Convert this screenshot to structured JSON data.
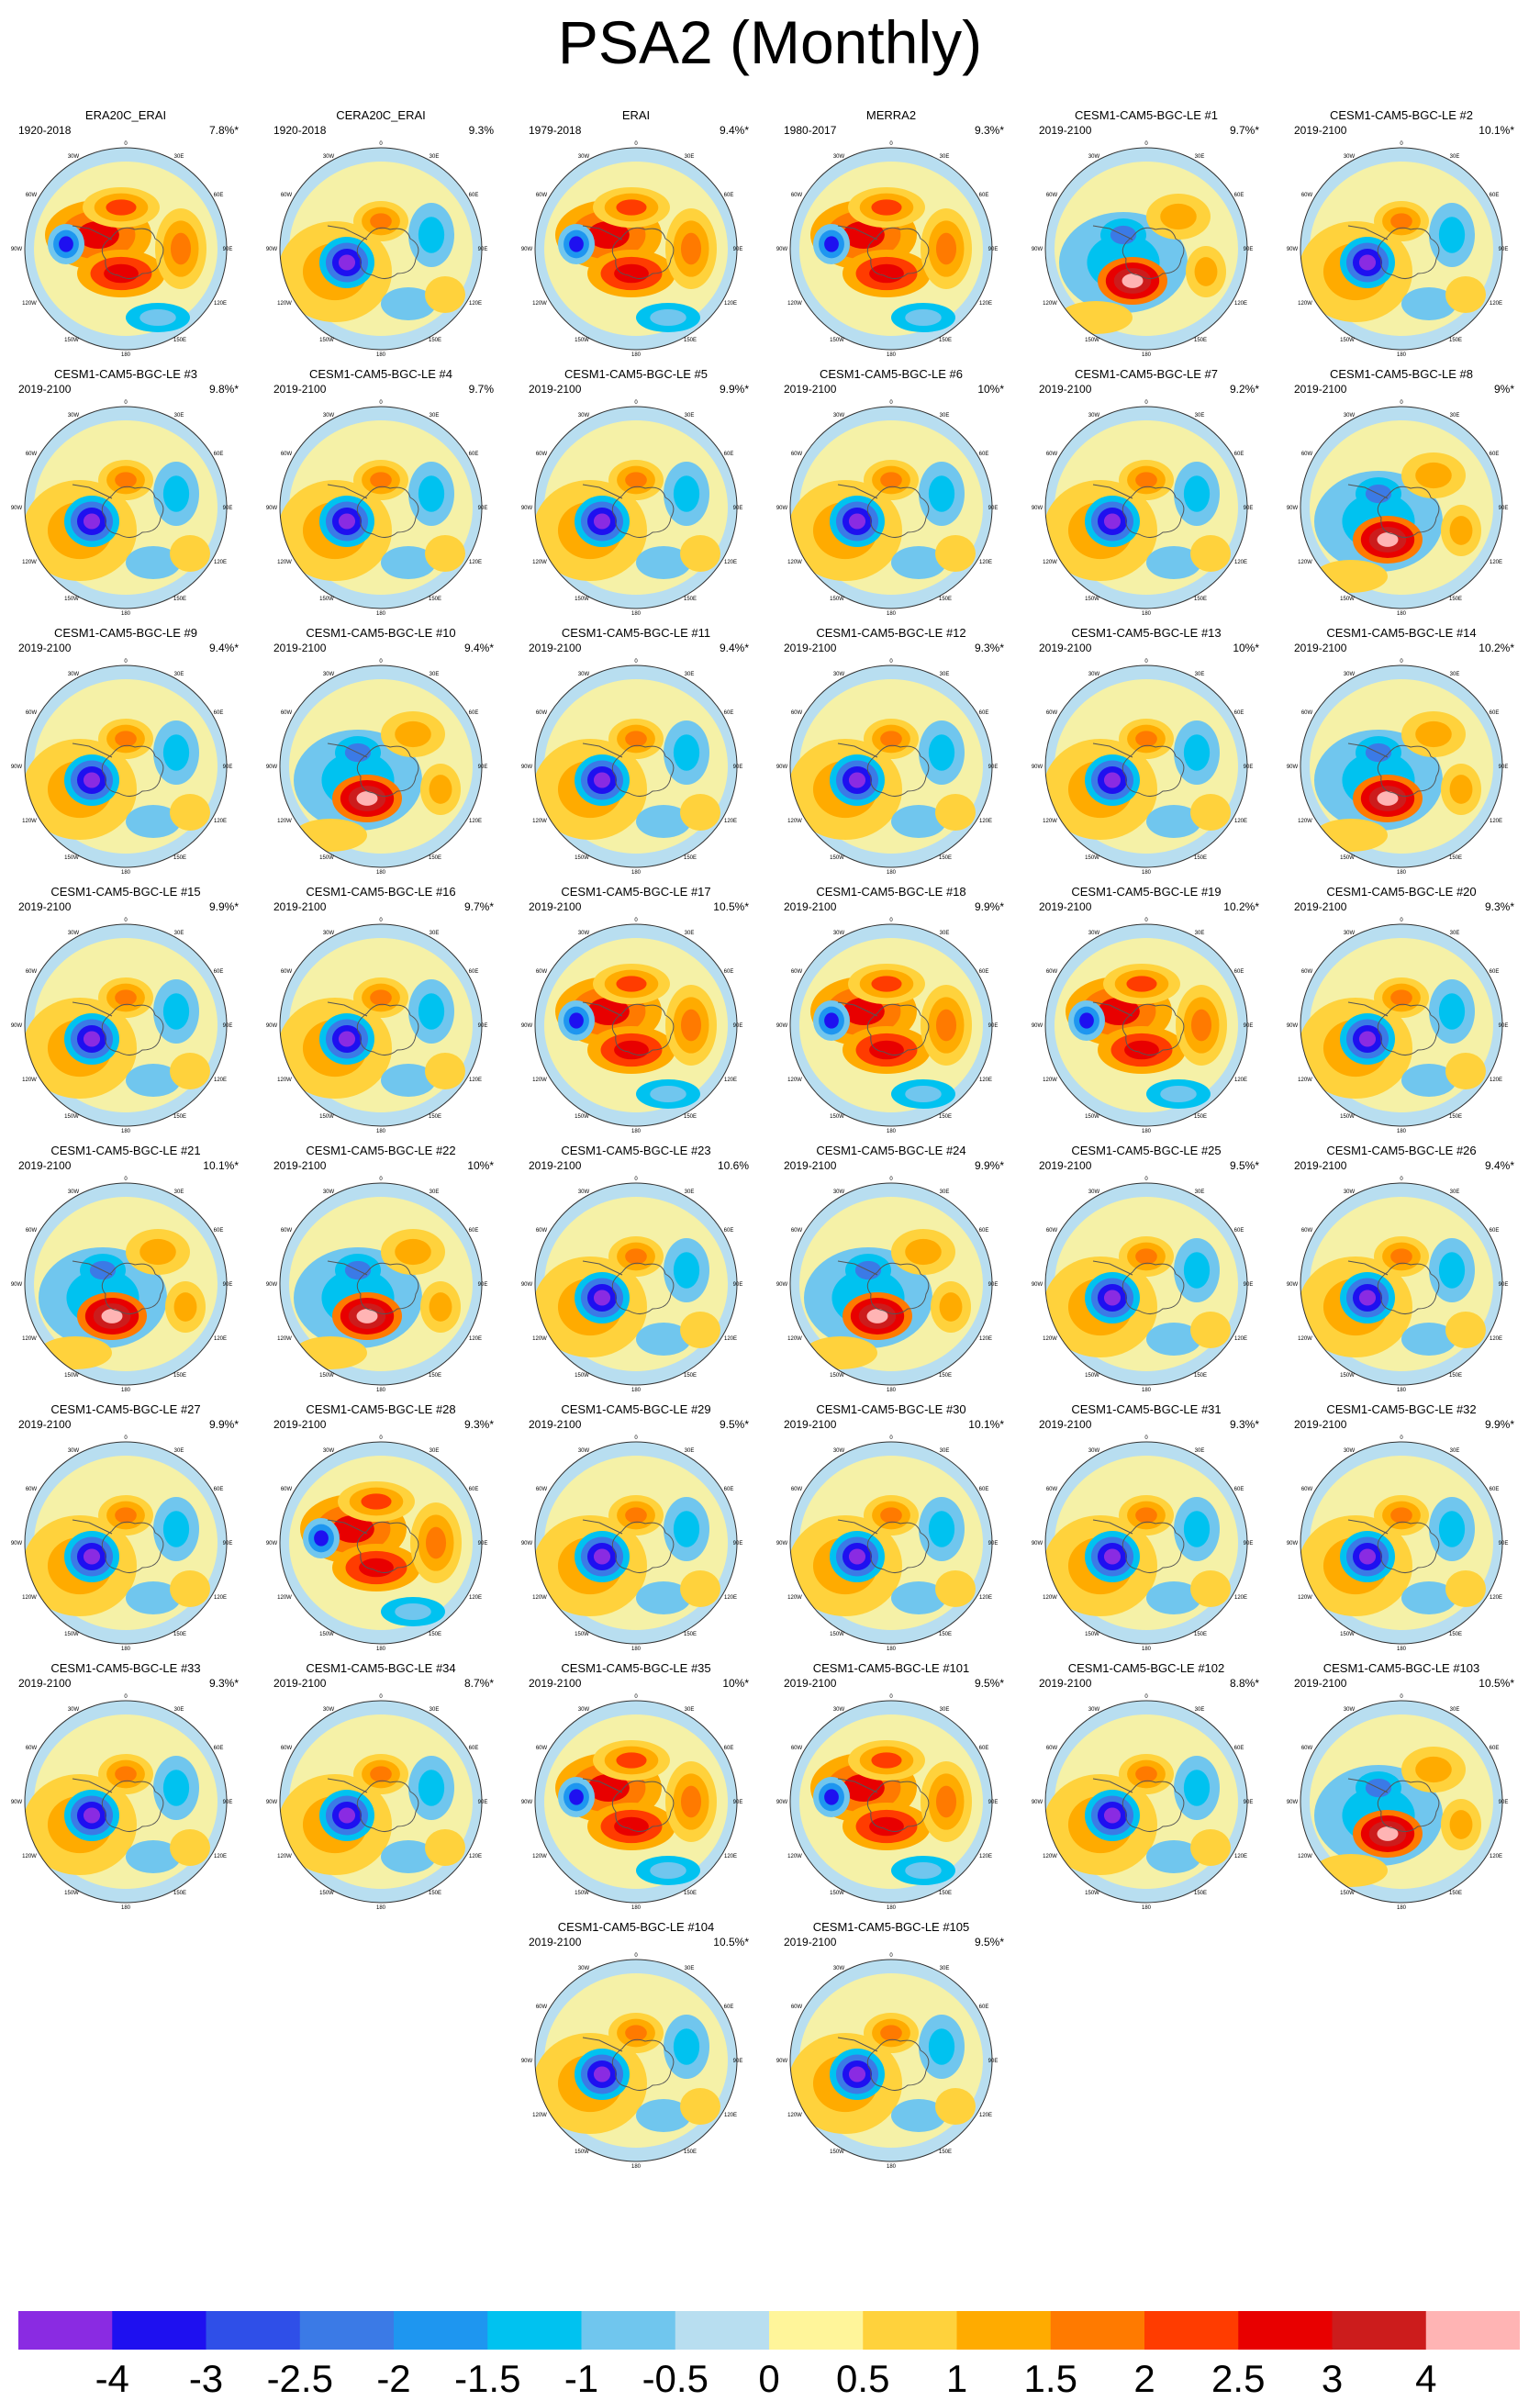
{
  "title": "PSA2 (Monthly)",
  "map_labels": {
    "top": "0",
    "t30w": "30W",
    "t30e": "30E",
    "l60w": "60W",
    "r60e": "60E",
    "l90w": "90W",
    "r90e": "90E",
    "l120w": "120W",
    "r120e": "120E",
    "b150w": "150W",
    "b150e": "150E",
    "bottom": "180"
  },
  "panels": [
    {
      "name": "ERA20C_ERAI",
      "period": "1920-2018",
      "pct": "7.8%*",
      "pattern": "A"
    },
    {
      "name": "CERA20C_ERAI",
      "period": "1920-2018",
      "pct": "9.3%",
      "pattern": "B"
    },
    {
      "name": "ERAI",
      "period": "1979-2018",
      "pct": "9.4%*",
      "pattern": "A"
    },
    {
      "name": "MERRA2",
      "period": "1980-2017",
      "pct": "9.3%*",
      "pattern": "A"
    },
    {
      "name": "CESM1-CAM5-BGC-LE #1",
      "period": "2019-2100",
      "pct": "9.7%*",
      "pattern": "C"
    },
    {
      "name": "CESM1-CAM5-BGC-LE #2",
      "period": "2019-2100",
      "pct": "10.1%*",
      "pattern": "B"
    },
    {
      "name": "CESM1-CAM5-BGC-LE #3",
      "period": "2019-2100",
      "pct": "9.8%*",
      "pattern": "B"
    },
    {
      "name": "CESM1-CAM5-BGC-LE #4",
      "period": "2019-2100",
      "pct": "9.7%",
      "pattern": "B"
    },
    {
      "name": "CESM1-CAM5-BGC-LE #5",
      "period": "2019-2100",
      "pct": "9.9%*",
      "pattern": "B"
    },
    {
      "name": "CESM1-CAM5-BGC-LE #6",
      "period": "2019-2100",
      "pct": "10%*",
      "pattern": "B"
    },
    {
      "name": "CESM1-CAM5-BGC-LE #7",
      "period": "2019-2100",
      "pct": "9.2%*",
      "pattern": "B"
    },
    {
      "name": "CESM1-CAM5-BGC-LE #8",
      "period": "2019-2100",
      "pct": "9%*",
      "pattern": "C"
    },
    {
      "name": "CESM1-CAM5-BGC-LE #9",
      "period": "2019-2100",
      "pct": "9.4%*",
      "pattern": "B"
    },
    {
      "name": "CESM1-CAM5-BGC-LE #10",
      "period": "2019-2100",
      "pct": "9.4%*",
      "pattern": "C"
    },
    {
      "name": "CESM1-CAM5-BGC-LE #11",
      "period": "2019-2100",
      "pct": "9.4%*",
      "pattern": "B"
    },
    {
      "name": "CESM1-CAM5-BGC-LE #12",
      "period": "2019-2100",
      "pct": "9.3%*",
      "pattern": "B"
    },
    {
      "name": "CESM1-CAM5-BGC-LE #13",
      "period": "2019-2100",
      "pct": "10%*",
      "pattern": "B"
    },
    {
      "name": "CESM1-CAM5-BGC-LE #14",
      "period": "2019-2100",
      "pct": "10.2%*",
      "pattern": "C"
    },
    {
      "name": "CESM1-CAM5-BGC-LE #15",
      "period": "2019-2100",
      "pct": "9.9%*",
      "pattern": "B"
    },
    {
      "name": "CESM1-CAM5-BGC-LE #16",
      "period": "2019-2100",
      "pct": "9.7%*",
      "pattern": "B"
    },
    {
      "name": "CESM1-CAM5-BGC-LE #17",
      "period": "2019-2100",
      "pct": "10.5%*",
      "pattern": "A"
    },
    {
      "name": "CESM1-CAM5-BGC-LE #18",
      "period": "2019-2100",
      "pct": "9.9%*",
      "pattern": "A"
    },
    {
      "name": "CESM1-CAM5-BGC-LE #19",
      "period": "2019-2100",
      "pct": "10.2%*",
      "pattern": "A"
    },
    {
      "name": "CESM1-CAM5-BGC-LE #20",
      "period": "2019-2100",
      "pct": "9.3%*",
      "pattern": "B"
    },
    {
      "name": "CESM1-CAM5-BGC-LE #21",
      "period": "2019-2100",
      "pct": "10.1%*",
      "pattern": "C"
    },
    {
      "name": "CESM1-CAM5-BGC-LE #22",
      "period": "2019-2100",
      "pct": "10%*",
      "pattern": "C"
    },
    {
      "name": "CESM1-CAM5-BGC-LE #23",
      "period": "2019-2100",
      "pct": "10.6%",
      "pattern": "B"
    },
    {
      "name": "CESM1-CAM5-BGC-LE #24",
      "period": "2019-2100",
      "pct": "9.9%*",
      "pattern": "C"
    },
    {
      "name": "CESM1-CAM5-BGC-LE #25",
      "period": "2019-2100",
      "pct": "9.5%*",
      "pattern": "B"
    },
    {
      "name": "CESM1-CAM5-BGC-LE #26",
      "period": "2019-2100",
      "pct": "9.4%*",
      "pattern": "B"
    },
    {
      "name": "CESM1-CAM5-BGC-LE #27",
      "period": "2019-2100",
      "pct": "9.9%*",
      "pattern": "B"
    },
    {
      "name": "CESM1-CAM5-BGC-LE #28",
      "period": "2019-2100",
      "pct": "9.3%*",
      "pattern": "A"
    },
    {
      "name": "CESM1-CAM5-BGC-LE #29",
      "period": "2019-2100",
      "pct": "9.5%*",
      "pattern": "B"
    },
    {
      "name": "CESM1-CAM5-BGC-LE #30",
      "period": "2019-2100",
      "pct": "10.1%*",
      "pattern": "B"
    },
    {
      "name": "CESM1-CAM5-BGC-LE #31",
      "period": "2019-2100",
      "pct": "9.3%*",
      "pattern": "B"
    },
    {
      "name": "CESM1-CAM5-BGC-LE #32",
      "period": "2019-2100",
      "pct": "9.9%*",
      "pattern": "B"
    },
    {
      "name": "CESM1-CAM5-BGC-LE #33",
      "period": "2019-2100",
      "pct": "9.3%*",
      "pattern": "B"
    },
    {
      "name": "CESM1-CAM5-BGC-LE #34",
      "period": "2019-2100",
      "pct": "8.7%*",
      "pattern": "B"
    },
    {
      "name": "CESM1-CAM5-BGC-LE #35",
      "period": "2019-2100",
      "pct": "10%*",
      "pattern": "A"
    },
    {
      "name": "CESM1-CAM5-BGC-LE #101",
      "period": "2019-2100",
      "pct": "9.5%*",
      "pattern": "A"
    },
    {
      "name": "CESM1-CAM5-BGC-LE #102",
      "period": "2019-2100",
      "pct": "8.8%*",
      "pattern": "B"
    },
    {
      "name": "CESM1-CAM5-BGC-LE #103",
      "period": "2019-2100",
      "pct": "10.5%*",
      "pattern": "C"
    },
    {
      "name": "CESM1-CAM5-BGC-LE #104",
      "period": "2019-2100",
      "pct": "10.5%*",
      "pattern": "B"
    },
    {
      "name": "CESM1-CAM5-BGC-LE #105",
      "period": "2019-2100",
      "pct": "9.5%*",
      "pattern": "B"
    }
  ],
  "colorbar": {
    "colors": [
      "#8a2be2",
      "#1e10f0",
      "#2f4fe8",
      "#3b7ae6",
      "#1e96f0",
      "#00c2f0",
      "#70c6ee",
      "#b8def0",
      "#fff59a",
      "#ffd23c",
      "#ffab00",
      "#ff7a00",
      "#ff3c00",
      "#e80000",
      "#cc1c1c",
      "#ffb4b4"
    ],
    "ticks": [
      "-4",
      "-3",
      "-2.5",
      "-2",
      "-1.5",
      "-1",
      "-0.5",
      "0",
      "0.5",
      "1",
      "1.5",
      "2",
      "2.5",
      "3",
      "4"
    ]
  }
}
